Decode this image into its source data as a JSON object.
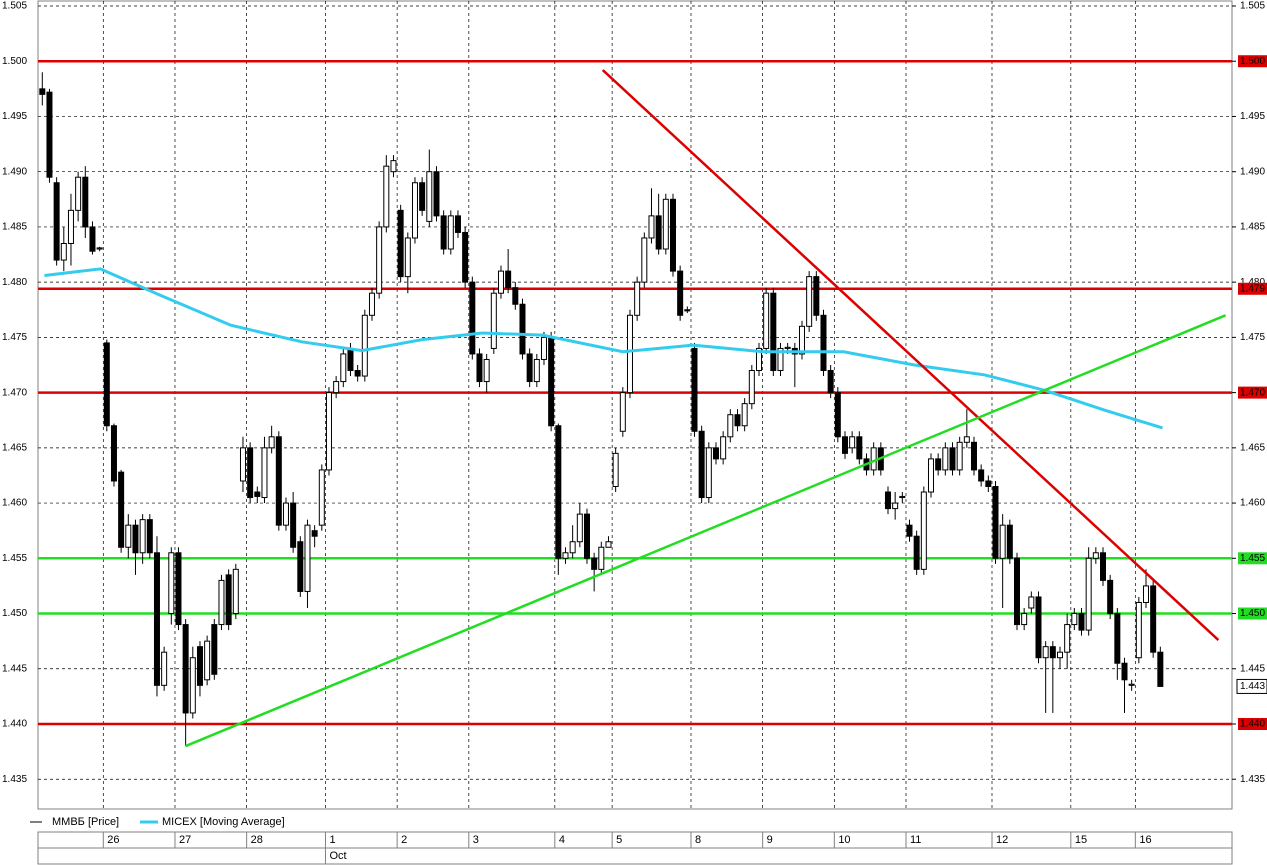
{
  "chart_data": {
    "type": "candlestick",
    "ylim": [
      1.4324,
      1.505
    ],
    "xlim": [
      -0.6,
      166
    ],
    "yticks": [
      {
        "value": 1.435,
        "label": "1.435"
      },
      {
        "value": 1.44,
        "label": "1.440"
      },
      1.445,
      {
        "value": 1.45,
        "label": "1.450"
      },
      1.455,
      {
        "value": 1.46,
        "label": "1.460"
      },
      1.465,
      {
        "value": 1.47,
        "label": "1.470"
      },
      1.475,
      {
        "value": 1.48,
        "label": "1.480"
      },
      1.485,
      {
        "value": 1.49,
        "label": "1.490"
      },
      1.495,
      {
        "value": 1.5,
        "label": "1.500"
      },
      1.505
    ],
    "grid": true,
    "series": [
      {
        "name": "ММВБ [Price]",
        "color": "#000000",
        "ohlc": [
          [
            1.4975,
            1.499,
            1.496,
            1.497
          ],
          [
            1.4972,
            1.4975,
            1.489,
            1.4895
          ],
          [
            1.489,
            1.4895,
            1.4815,
            1.482
          ],
          [
            1.482,
            1.485,
            1.481,
            1.4835
          ],
          [
            1.4835,
            1.488,
            1.4815,
            1.4865
          ],
          [
            1.4865,
            1.49,
            1.4855,
            1.4895
          ],
          [
            1.4895,
            1.4905,
            1.484,
            1.485
          ],
          [
            1.485,
            1.4855,
            1.4825,
            1.4828
          ],
          [
            1.483,
            1.4832,
            1.4828,
            1.4831
          ],
          [
            1.4745,
            1.4748,
            1.4665,
            1.467
          ],
          [
            1.467,
            1.4672,
            1.4615,
            1.462
          ],
          [
            1.4628,
            1.463,
            1.4555,
            1.456
          ],
          [
            1.456,
            1.459,
            1.455,
            1.458
          ],
          [
            1.458,
            1.4585,
            1.4535,
            1.4555
          ],
          [
            1.4555,
            1.459,
            1.4545,
            1.4585
          ],
          [
            1.4585,
            1.459,
            1.455,
            1.4555
          ],
          [
            1.4555,
            1.457,
            1.4425,
            1.4435
          ],
          [
            1.4435,
            1.447,
            1.443,
            1.4465
          ],
          [
            1.45,
            1.456,
            1.449,
            1.4555
          ],
          [
            1.4555,
            1.456,
            1.4485,
            1.449
          ],
          [
            1.449,
            1.4495,
            1.438,
            1.441
          ],
          [
            1.441,
            1.447,
            1.4405,
            1.446
          ],
          [
            1.447,
            1.4475,
            1.4425,
            1.4435
          ],
          [
            1.444,
            1.448,
            1.4435,
            1.4475
          ],
          [
            1.449,
            1.4495,
            1.444,
            1.4445
          ],
          [
            1.449,
            1.4535,
            1.4485,
            1.453
          ],
          [
            1.4535,
            1.454,
            1.4485,
            1.449
          ],
          [
            1.45,
            1.4545,
            1.4495,
            1.454
          ],
          [
            1.462,
            1.466,
            1.461,
            1.465
          ],
          [
            1.465,
            1.4655,
            1.46,
            1.4605
          ],
          [
            1.461,
            1.4615,
            1.46,
            1.4606
          ],
          [
            1.4605,
            1.466,
            1.46,
            1.465
          ],
          [
            1.465,
            1.467,
            1.4645,
            1.466
          ],
          [
            1.466,
            1.4665,
            1.4575,
            1.458
          ],
          [
            1.458,
            1.4605,
            1.4575,
            1.46
          ],
          [
            1.46,
            1.461,
            1.4555,
            1.456
          ],
          [
            1.4565,
            1.457,
            1.4515,
            1.452
          ],
          [
            1.452,
            1.4585,
            1.4505,
            1.458
          ],
          [
            1.4575,
            1.458,
            1.456,
            1.457
          ],
          [
            1.458,
            1.4635,
            1.4575,
            1.463
          ],
          [
            1.463,
            1.4705,
            1.4625,
            1.47
          ],
          [
            1.47,
            1.4715,
            1.4695,
            1.471
          ],
          [
            1.471,
            1.474,
            1.4705,
            1.4735
          ],
          [
            1.474,
            1.4745,
            1.4715,
            1.472
          ],
          [
            1.472,
            1.4725,
            1.471,
            1.4715
          ],
          [
            1.4715,
            1.4775,
            1.471,
            1.477
          ],
          [
            1.477,
            1.4795,
            1.4765,
            1.479
          ],
          [
            1.479,
            1.4855,
            1.4785,
            1.485
          ],
          [
            1.485,
            1.4915,
            1.4845,
            1.4905
          ],
          [
            1.49,
            1.4915,
            1.4895,
            1.491
          ],
          [
            1.4865,
            1.487,
            1.48,
            1.4805
          ],
          [
            1.4805,
            1.4845,
            1.479,
            1.484
          ],
          [
            1.484,
            1.4895,
            1.4835,
            1.489
          ],
          [
            1.489,
            1.4895,
            1.486,
            1.4865
          ],
          [
            1.4855,
            1.492,
            1.485,
            1.49
          ],
          [
            1.49,
            1.4905,
            1.4855,
            1.486
          ],
          [
            1.486,
            1.4865,
            1.4825,
            1.483
          ],
          [
            1.483,
            1.4865,
            1.4825,
            1.486
          ],
          [
            1.486,
            1.4865,
            1.484,
            1.4845
          ],
          [
            1.4845,
            1.485,
            1.4795,
            1.48
          ],
          [
            1.48,
            1.4805,
            1.473,
            1.4735
          ],
          [
            1.4735,
            1.474,
            1.4705,
            1.471
          ],
          [
            1.471,
            1.4735,
            1.47,
            1.473
          ],
          [
            1.474,
            1.4795,
            1.4735,
            1.479
          ],
          [
            1.479,
            1.4815,
            1.4785,
            1.481
          ],
          [
            1.481,
            1.483,
            1.479,
            1.4795
          ],
          [
            1.4795,
            1.48,
            1.4775,
            1.478
          ],
          [
            1.478,
            1.4785,
            1.473,
            1.4735
          ],
          [
            1.4735,
            1.474,
            1.4705,
            1.471
          ],
          [
            1.471,
            1.4735,
            1.4705,
            1.473
          ],
          [
            1.473,
            1.4755,
            1.4725,
            1.475
          ],
          [
            1.475,
            1.4755,
            1.4665,
            1.467
          ],
          [
            1.467,
            1.4672,
            1.4535,
            1.455
          ],
          [
            1.455,
            1.456,
            1.4545,
            1.4555
          ],
          [
            1.4555,
            1.458,
            1.455,
            1.4565
          ],
          [
            1.4565,
            1.46,
            1.456,
            1.459
          ],
          [
            1.459,
            1.4595,
            1.4545,
            1.455
          ],
          [
            1.455,
            1.4555,
            1.452,
            1.454
          ],
          [
            1.454,
            1.4565,
            1.4535,
            1.456
          ],
          [
            1.456,
            1.457,
            1.456,
            1.4565
          ],
          [
            1.4615,
            1.465,
            1.461,
            1.4645
          ],
          [
            1.4665,
            1.4705,
            1.466,
            1.47
          ],
          [
            1.47,
            1.4775,
            1.4695,
            1.477
          ],
          [
            1.477,
            1.4805,
            1.4765,
            1.48
          ],
          [
            1.48,
            1.4845,
            1.4795,
            1.484
          ],
          [
            1.484,
            1.4885,
            1.4835,
            1.486
          ],
          [
            1.486,
            1.488,
            1.4825,
            1.483
          ],
          [
            1.483,
            1.488,
            1.4825,
            1.4875
          ],
          [
            1.4875,
            1.488,
            1.4805,
            1.481
          ],
          [
            1.481,
            1.4815,
            1.4765,
            1.477
          ],
          [
            1.4775,
            1.4778,
            1.4772,
            1.4774
          ],
          [
            1.474,
            1.4745,
            1.466,
            1.4665
          ],
          [
            1.4665,
            1.467,
            1.46,
            1.4605
          ],
          [
            1.4605,
            1.4655,
            1.46,
            1.465
          ],
          [
            1.465,
            1.4655,
            1.4635,
            1.464
          ],
          [
            1.464,
            1.4665,
            1.4635,
            1.466
          ],
          [
            1.466,
            1.4685,
            1.4655,
            1.468
          ],
          [
            1.468,
            1.4685,
            1.4665,
            1.467
          ],
          [
            1.467,
            1.4695,
            1.4665,
            1.469
          ],
          [
            1.469,
            1.4725,
            1.4685,
            1.472
          ],
          [
            1.472,
            1.4745,
            1.4715,
            1.474
          ],
          [
            1.474,
            1.4795,
            1.4735,
            1.479
          ],
          [
            1.479,
            1.4795,
            1.4715,
            1.472
          ],
          [
            1.472,
            1.4745,
            1.4715,
            1.474
          ],
          [
            1.474,
            1.4745,
            1.4735,
            1.4741
          ],
          [
            1.474,
            1.4745,
            1.4705,
            1.4735
          ],
          [
            1.4735,
            1.4765,
            1.473,
            1.476
          ],
          [
            1.476,
            1.481,
            1.4755,
            1.4805
          ],
          [
            1.4805,
            1.481,
            1.4765,
            1.477
          ],
          [
            1.477,
            1.4775,
            1.4715,
            1.472
          ],
          [
            1.472,
            1.4725,
            1.4695,
            1.47
          ],
          [
            1.47,
            1.4705,
            1.4655,
            1.466
          ],
          [
            1.466,
            1.4665,
            1.464,
            1.4645
          ],
          [
            1.465,
            1.4665,
            1.4645,
            1.466
          ],
          [
            1.466,
            1.4665,
            1.4635,
            1.464
          ],
          [
            1.464,
            1.4645,
            1.4625,
            1.463
          ],
          [
            1.463,
            1.4655,
            1.4625,
            1.465
          ],
          [
            1.465,
            1.4655,
            1.4625,
            1.463
          ],
          [
            1.461,
            1.4615,
            1.459,
            1.4595
          ],
          [
            1.4595,
            1.461,
            1.4585,
            1.46
          ],
          [
            1.4605,
            1.461,
            1.46,
            1.4606
          ],
          [
            1.458,
            1.4585,
            1.4565,
            1.457
          ],
          [
            1.457,
            1.4575,
            1.4535,
            1.454
          ],
          [
            1.454,
            1.4615,
            1.4535,
            1.461
          ],
          [
            1.461,
            1.4645,
            1.4605,
            1.464
          ],
          [
            1.464,
            1.4645,
            1.4625,
            1.463
          ],
          [
            1.463,
            1.4655,
            1.4625,
            1.465
          ],
          [
            1.465,
            1.4655,
            1.4625,
            1.463
          ],
          [
            1.463,
            1.466,
            1.4625,
            1.4655
          ],
          [
            1.4655,
            1.4685,
            1.465,
            1.466
          ],
          [
            1.4655,
            1.466,
            1.4625,
            1.463
          ],
          [
            1.463,
            1.4635,
            1.4615,
            1.462
          ],
          [
            1.462,
            1.4625,
            1.461,
            1.4615
          ],
          [
            1.4615,
            1.462,
            1.4545,
            1.455
          ],
          [
            1.455,
            1.459,
            1.4505,
            1.458
          ],
          [
            1.458,
            1.4585,
            1.4545,
            1.455
          ],
          [
            1.455,
            1.4555,
            1.4485,
            1.449
          ],
          [
            1.449,
            1.4505,
            1.4485,
            1.45
          ],
          [
            1.4505,
            1.452,
            1.45,
            1.4515
          ],
          [
            1.4515,
            1.452,
            1.4455,
            1.446
          ],
          [
            1.446,
            1.4475,
            1.441,
            1.447
          ],
          [
            1.447,
            1.4475,
            1.441,
            1.446
          ],
          [
            1.446,
            1.447,
            1.445,
            1.4465
          ],
          [
            1.4465,
            1.45,
            1.445,
            1.449
          ],
          [
            1.449,
            1.4505,
            1.4485,
            1.45
          ],
          [
            1.45,
            1.4505,
            1.448,
            1.4485
          ],
          [
            1.4485,
            1.456,
            1.448,
            1.455
          ],
          [
            1.455,
            1.456,
            1.4545,
            1.4555
          ],
          [
            1.4555,
            1.456,
            1.4525,
            1.453
          ],
          [
            1.453,
            1.4535,
            1.4495,
            1.45
          ],
          [
            1.45,
            1.4505,
            1.444,
            1.4455
          ],
          [
            1.4455,
            1.446,
            1.441,
            1.444
          ],
          [
            1.4435,
            1.444,
            1.443,
            1.4436
          ],
          [
            1.446,
            1.4515,
            1.4455,
            1.451
          ],
          [
            1.451,
            1.454,
            1.4505,
            1.4525
          ],
          [
            1.4525,
            1.453,
            1.446,
            1.4465
          ],
          [
            1.4465,
            1.447,
            1.4434,
            1.4434
          ]
        ]
      },
      {
        "name": "MICEX [Moving Average]",
        "color": "#33ccee",
        "x": [
          0.3,
          8.1,
          16.5,
          26.3,
          36.2,
          44.6,
          53,
          61.4,
          69.8,
          81,
          90.8,
          100.6,
          111.8,
          121.7,
          131.5,
          139.9,
          148.3,
          156.3
        ],
        "values": [
          1.4806,
          1.4812,
          1.4788,
          1.4761,
          1.4746,
          1.4738,
          1.4748,
          1.4754,
          1.4752,
          1.4737,
          1.4743,
          1.4737,
          1.4737,
          1.4725,
          1.4716,
          1.4702,
          1.4684,
          1.4668
        ]
      }
    ],
    "levels": [
      {
        "value": 1.5,
        "label": "1.500",
        "color": "#dd0000"
      },
      {
        "value": 1.4794,
        "label": "1.479",
        "color": "#dd0000"
      },
      {
        "value": 1.47,
        "label": "1.470",
        "color": "#dd0000"
      },
      {
        "value": 1.455,
        "label": "1.455",
        "color": "#22dd22"
      },
      {
        "value": 1.45,
        "label": "1.450",
        "color": "#22dd22"
      },
      {
        "value": 1.44,
        "label": "1.440",
        "color": "#dd0000"
      }
    ],
    "last_price": {
      "value": 1.4434,
      "label": "1.443"
    },
    "trendlines": [
      {
        "color": "#dd0000",
        "x": [
          78.2,
          164.1
        ],
        "values": [
          1.4992,
          1.4476
        ]
      },
      {
        "color": "#22dd22",
        "x": [
          20.0,
          165.1
        ],
        "values": [
          1.438,
          1.477
        ]
      }
    ],
    "dates": [
      {
        "label": "26",
        "index": 9
      },
      {
        "label": "27",
        "index": 19
      },
      {
        "label": "28",
        "index": 29
      },
      {
        "label": "1",
        "index": 40
      },
      {
        "label": "2",
        "index": 50
      },
      {
        "label": "3",
        "index": 60
      },
      {
        "label": "4",
        "index": 72
      },
      {
        "label": "5",
        "index": 80
      },
      {
        "label": "8",
        "index": 91
      },
      {
        "label": "9",
        "index": 101
      },
      {
        "label": "10",
        "index": 111
      },
      {
        "label": "11",
        "index": 121
      },
      {
        "label": "12",
        "index": 133
      },
      {
        "label": "15",
        "index": 144
      },
      {
        "label": "16",
        "index": 153
      }
    ],
    "months": [
      {
        "label": "Oct",
        "index": 40
      }
    ]
  }
}
